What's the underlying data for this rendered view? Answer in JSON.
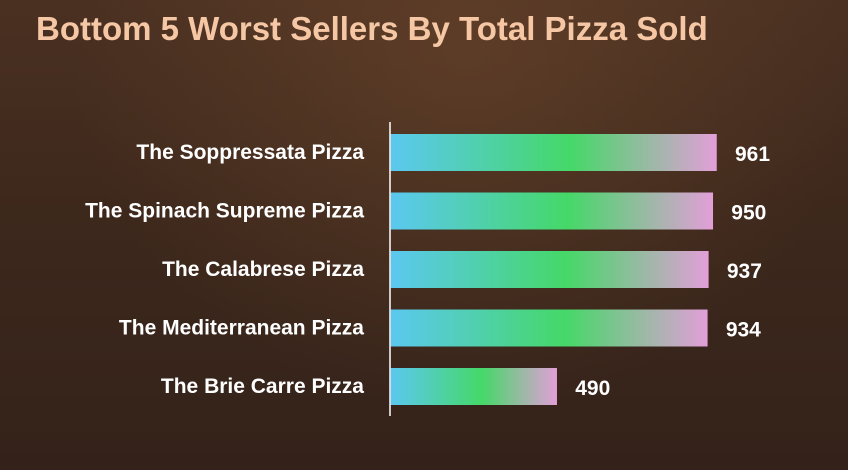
{
  "chart_data": {
    "type": "bar",
    "orientation": "horizontal",
    "title": "Bottom 5 Worst Sellers By Total Pizza Sold",
    "categories": [
      "The Soppressata Pizza",
      "The Spinach Supreme Pizza",
      "The Calabrese Pizza",
      "The Mediterranean Pizza",
      "The Brie Carre Pizza"
    ],
    "values": [
      961,
      950,
      937,
      934,
      490
    ],
    "xlim": [
      0,
      961
    ],
    "grid": false,
    "legend": "none",
    "data_labels": true,
    "colors": {
      "background": "#3d281c",
      "title": "#f6c7a5",
      "labels": "#ffffff",
      "axis": "#ffffff",
      "bar_gradient": [
        "#5bc8f0",
        "#45d868",
        "#e29fd8"
      ]
    }
  }
}
